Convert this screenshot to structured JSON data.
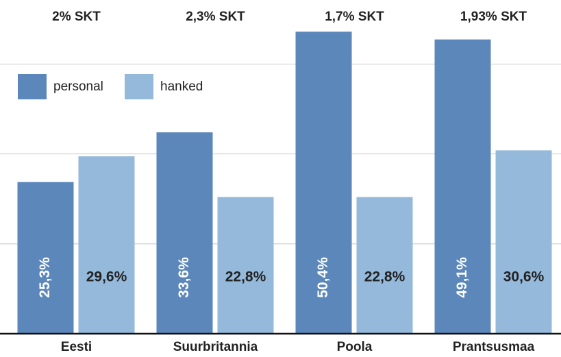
{
  "chart_data": {
    "type": "bar",
    "categories": [
      "Eesti",
      "Suurbritannia",
      "Poola",
      "Prantsusmaa"
    ],
    "annotations": [
      "2% SKT",
      "2,3% SKT",
      "1,7% SKT",
      "1,93% SKT"
    ],
    "series": [
      {
        "name": "personal",
        "color": "#5b87bb",
        "values": [
          25.3,
          33.6,
          50.4,
          49.1
        ],
        "value_labels": [
          "25,3%",
          "33,6%",
          "50,4%",
          "49,1%"
        ]
      },
      {
        "name": "hanked",
        "color": "#94b9db",
        "values": [
          29.6,
          22.8,
          22.8,
          30.6
        ],
        "value_labels": [
          "29,6%",
          "22,8%",
          "22,8%",
          "30,6%"
        ]
      }
    ],
    "ylim": [
      0,
      55
    ],
    "yticks": [
      0,
      15,
      30,
      45
    ],
    "grid": true,
    "legend": "top-left"
  }
}
